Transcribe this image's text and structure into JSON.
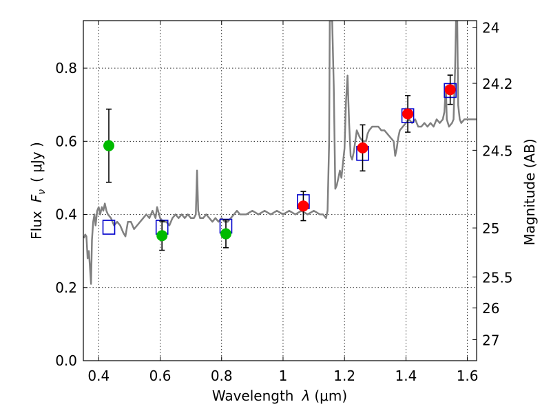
{
  "chart_data": {
    "type": "scatter",
    "xlabel": {
      "prefix": "Wavelength",
      "lambda": "λ",
      "unit": "(μm)"
    },
    "ylabel": {
      "prefix": "Flux",
      "symbol": "F",
      "sub": "ν",
      "unit": "( μJy )"
    },
    "ylabel_right": "Magnitude (AB)",
    "xlim": [
      0.35,
      1.63
    ],
    "ylim": [
      0.0,
      0.93
    ],
    "xticks": [
      "0.4",
      "0.6",
      "0.8",
      "1",
      "1.2",
      "1.4",
      "1.6"
    ],
    "xtick_values": [
      0.4,
      0.6,
      0.8,
      1.0,
      1.2,
      1.4,
      1.6
    ],
    "yticks": [
      "0.0",
      "0.2",
      "0.4",
      "0.6",
      "0.8"
    ],
    "ytick_values": [
      0.0,
      0.2,
      0.4,
      0.6,
      0.8
    ],
    "right_ticks": [
      "24",
      "24.2",
      "24.5",
      "25",
      "25.5",
      "26",
      "27"
    ],
    "grid": true,
    "colors": {
      "spectrum": "#808080",
      "model": "#0000cc",
      "green": "#00bb00",
      "red": "#ff0000",
      "error": "#000000"
    },
    "spectrum": [
      [
        0.352,
        0.335
      ],
      [
        0.356,
        0.345
      ],
      [
        0.36,
        0.34
      ],
      [
        0.364,
        0.28
      ],
      [
        0.368,
        0.3
      ],
      [
        0.372,
        0.25
      ],
      [
        0.375,
        0.21
      ],
      [
        0.378,
        0.33
      ],
      [
        0.382,
        0.38
      ],
      [
        0.386,
        0.4
      ],
      [
        0.39,
        0.37
      ],
      [
        0.395,
        0.41
      ],
      [
        0.4,
        0.42
      ],
      [
        0.405,
        0.4
      ],
      [
        0.41,
        0.42
      ],
      [
        0.415,
        0.41
      ],
      [
        0.42,
        0.43
      ],
      [
        0.425,
        0.41
      ],
      [
        0.43,
        0.4
      ],
      [
        0.44,
        0.39
      ],
      [
        0.45,
        0.37
      ],
      [
        0.46,
        0.38
      ],
      [
        0.47,
        0.37
      ],
      [
        0.48,
        0.35
      ],
      [
        0.487,
        0.34
      ],
      [
        0.495,
        0.38
      ],
      [
        0.505,
        0.38
      ],
      [
        0.515,
        0.36
      ],
      [
        0.525,
        0.37
      ],
      [
        0.535,
        0.38
      ],
      [
        0.545,
        0.39
      ],
      [
        0.555,
        0.4
      ],
      [
        0.565,
        0.39
      ],
      [
        0.575,
        0.41
      ],
      [
        0.585,
        0.39
      ],
      [
        0.59,
        0.42
      ],
      [
        0.6,
        0.39
      ],
      [
        0.61,
        0.38
      ],
      [
        0.62,
        0.38
      ],
      [
        0.63,
        0.37
      ],
      [
        0.64,
        0.39
      ],
      [
        0.65,
        0.4
      ],
      [
        0.66,
        0.39
      ],
      [
        0.67,
        0.4
      ],
      [
        0.68,
        0.39
      ],
      [
        0.69,
        0.4
      ],
      [
        0.7,
        0.39
      ],
      [
        0.71,
        0.39
      ],
      [
        0.716,
        0.4
      ],
      [
        0.72,
        0.52
      ],
      [
        0.724,
        0.41
      ],
      [
        0.73,
        0.39
      ],
      [
        0.74,
        0.39
      ],
      [
        0.75,
        0.4
      ],
      [
        0.76,
        0.39
      ],
      [
        0.77,
        0.38
      ],
      [
        0.78,
        0.39
      ],
      [
        0.79,
        0.38
      ],
      [
        0.8,
        0.39
      ],
      [
        0.81,
        0.38
      ],
      [
        0.82,
        0.38
      ],
      [
        0.83,
        0.39
      ],
      [
        0.84,
        0.4
      ],
      [
        0.85,
        0.41
      ],
      [
        0.86,
        0.4
      ],
      [
        0.87,
        0.4
      ],
      [
        0.88,
        0.4
      ],
      [
        0.9,
        0.41
      ],
      [
        0.92,
        0.4
      ],
      [
        0.94,
        0.41
      ],
      [
        0.96,
        0.4
      ],
      [
        0.98,
        0.41
      ],
      [
        1.0,
        0.4
      ],
      [
        1.02,
        0.41
      ],
      [
        1.04,
        0.4
      ],
      [
        1.06,
        0.41
      ],
      [
        1.08,
        0.4
      ],
      [
        1.1,
        0.41
      ],
      [
        1.12,
        0.4
      ],
      [
        1.13,
        0.4
      ],
      [
        1.14,
        0.39
      ],
      [
        1.145,
        0.41
      ],
      [
        1.15,
        0.6
      ],
      [
        1.152,
        0.93
      ],
      [
        1.16,
        0.93
      ],
      [
        1.165,
        0.75
      ],
      [
        1.17,
        0.47
      ],
      [
        1.175,
        0.48
      ],
      [
        1.18,
        0.5
      ],
      [
        1.185,
        0.52
      ],
      [
        1.19,
        0.5
      ],
      [
        1.195,
        0.54
      ],
      [
        1.2,
        0.58
      ],
      [
        1.205,
        0.71
      ],
      [
        1.21,
        0.78
      ],
      [
        1.215,
        0.65
      ],
      [
        1.22,
        0.56
      ],
      [
        1.225,
        0.55
      ],
      [
        1.23,
        0.57
      ],
      [
        1.24,
        0.63
      ],
      [
        1.25,
        0.61
      ],
      [
        1.26,
        0.6
      ],
      [
        1.27,
        0.6
      ],
      [
        1.275,
        0.62
      ],
      [
        1.28,
        0.63
      ],
      [
        1.29,
        0.64
      ],
      [
        1.3,
        0.64
      ],
      [
        1.31,
        0.64
      ],
      [
        1.32,
        0.63
      ],
      [
        1.33,
        0.63
      ],
      [
        1.34,
        0.62
      ],
      [
        1.35,
        0.61
      ],
      [
        1.36,
        0.6
      ],
      [
        1.365,
        0.56
      ],
      [
        1.37,
        0.58
      ],
      [
        1.375,
        0.61
      ],
      [
        1.38,
        0.63
      ],
      [
        1.39,
        0.64
      ],
      [
        1.4,
        0.65
      ],
      [
        1.41,
        0.66
      ],
      [
        1.42,
        0.65
      ],
      [
        1.43,
        0.66
      ],
      [
        1.44,
        0.64
      ],
      [
        1.45,
        0.64
      ],
      [
        1.46,
        0.65
      ],
      [
        1.47,
        0.64
      ],
      [
        1.48,
        0.65
      ],
      [
        1.49,
        0.64
      ],
      [
        1.5,
        0.66
      ],
      [
        1.51,
        0.65
      ],
      [
        1.52,
        0.66
      ],
      [
        1.525,
        0.68
      ],
      [
        1.53,
        0.75
      ],
      [
        1.533,
        0.66
      ],
      [
        1.54,
        0.64
      ],
      [
        1.55,
        0.65
      ],
      [
        1.555,
        0.66
      ],
      [
        1.56,
        0.8
      ],
      [
        1.563,
        0.93
      ],
      [
        1.567,
        0.93
      ],
      [
        1.57,
        0.7
      ],
      [
        1.575,
        0.66
      ],
      [
        1.58,
        0.65
      ],
      [
        1.59,
        0.66
      ],
      [
        1.6,
        0.66
      ],
      [
        1.61,
        0.66
      ],
      [
        1.62,
        0.66
      ],
      [
        1.63,
        0.66
      ]
    ],
    "model_points": [
      {
        "x": 0.433,
        "y": 0.365
      },
      {
        "x": 0.606,
        "y": 0.365
      },
      {
        "x": 0.814,
        "y": 0.368
      },
      {
        "x": 1.066,
        "y": 0.435
      },
      {
        "x": 1.259,
        "y": 0.567
      },
      {
        "x": 1.406,
        "y": 0.67
      },
      {
        "x": 1.544,
        "y": 0.739
      }
    ],
    "observed_points": [
      {
        "x": 0.433,
        "y": 0.588,
        "err": 0.1,
        "color": "green"
      },
      {
        "x": 0.606,
        "y": 0.342,
        "err": 0.04,
        "color": "green"
      },
      {
        "x": 0.814,
        "y": 0.347,
        "err": 0.038,
        "color": "green"
      },
      {
        "x": 1.066,
        "y": 0.423,
        "err": 0.04,
        "color": "red"
      },
      {
        "x": 1.259,
        "y": 0.582,
        "err": 0.063,
        "color": "red"
      },
      {
        "x": 1.406,
        "y": 0.675,
        "err": 0.05,
        "color": "red"
      },
      {
        "x": 1.544,
        "y": 0.741,
        "err": 0.04,
        "color": "red"
      }
    ]
  }
}
